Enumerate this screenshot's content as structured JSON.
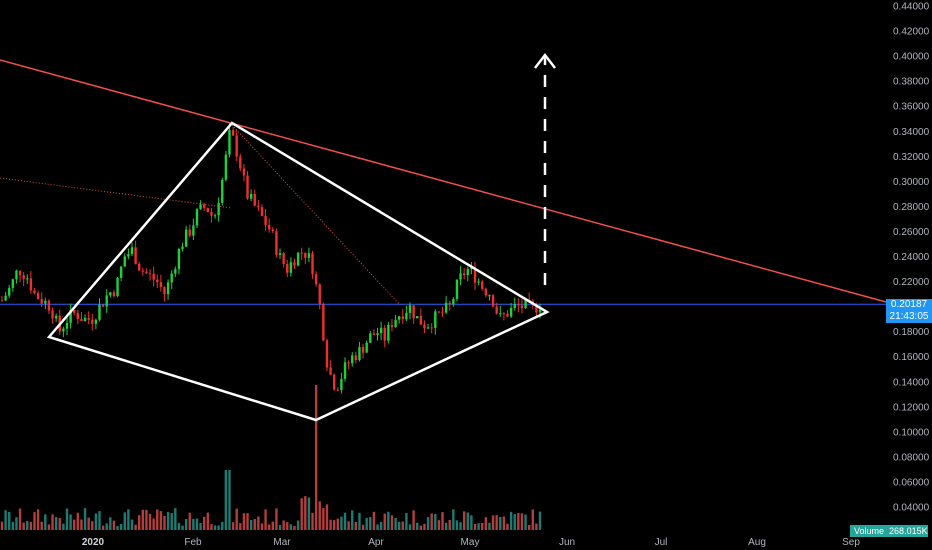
{
  "chart_data": {
    "type": "candlestick",
    "price_axis": {
      "ticks": [
        "0.44000",
        "0.42000",
        "0.40000",
        "0.38000",
        "0.36000",
        "0.34000",
        "0.32000",
        "0.30000",
        "0.28000",
        "0.26000",
        "0.24000",
        "0.22000",
        "0.20000",
        "0.18000",
        "0.16000",
        "0.14000",
        "0.12000",
        "0.10000",
        "0.08000",
        "0.06000",
        "0.04000"
      ],
      "range": [
        0.03,
        0.44
      ]
    },
    "time_axis": {
      "labels": [
        {
          "text": "2020",
          "bold": true
        },
        {
          "text": "Feb",
          "bold": false
        },
        {
          "text": "Mar",
          "bold": false
        },
        {
          "text": "Apr",
          "bold": false
        },
        {
          "text": "May",
          "bold": false
        },
        {
          "text": "Jun",
          "bold": false
        },
        {
          "text": "Jul",
          "bold": false
        },
        {
          "text": "Aug",
          "bold": false
        },
        {
          "text": "Sep",
          "bold": false
        }
      ]
    },
    "last_price": "0.20187",
    "countdown": "21:43:05",
    "volume_label": "Volume",
    "volume_value": "268.015K",
    "colors": {
      "up": "#26a69a",
      "up_bright": "#19d23c",
      "down": "#ef2f2f",
      "trendline": "#f0504c",
      "pattern": "#ffffff",
      "last_price_line": "#2962ff",
      "tag_bg": "#2196f3",
      "volume_up": "#26a69a",
      "volume_down": "#ef5350"
    },
    "candles_sampled_close": [
      0.205,
      0.215,
      0.23,
      0.225,
      0.21,
      0.205,
      0.2,
      0.18,
      0.19,
      0.195,
      0.19,
      0.19,
      0.2,
      0.21,
      0.215,
      0.24,
      0.245,
      0.23,
      0.225,
      0.22,
      0.21,
      0.23,
      0.25,
      0.26,
      0.275,
      0.28,
      0.27,
      0.3,
      0.34,
      0.32,
      0.29,
      0.28,
      0.27,
      0.26,
      0.24,
      0.23,
      0.24,
      0.245,
      0.235,
      0.2,
      0.15,
      0.135,
      0.15,
      0.16,
      0.165,
      0.175,
      0.18,
      0.175,
      0.19,
      0.195,
      0.2,
      0.19,
      0.185,
      0.19,
      0.195,
      0.2,
      0.22,
      0.23,
      0.225,
      0.215,
      0.21,
      0.19,
      0.195,
      0.2,
      0.2,
      0.198,
      0.202
    ]
  }
}
